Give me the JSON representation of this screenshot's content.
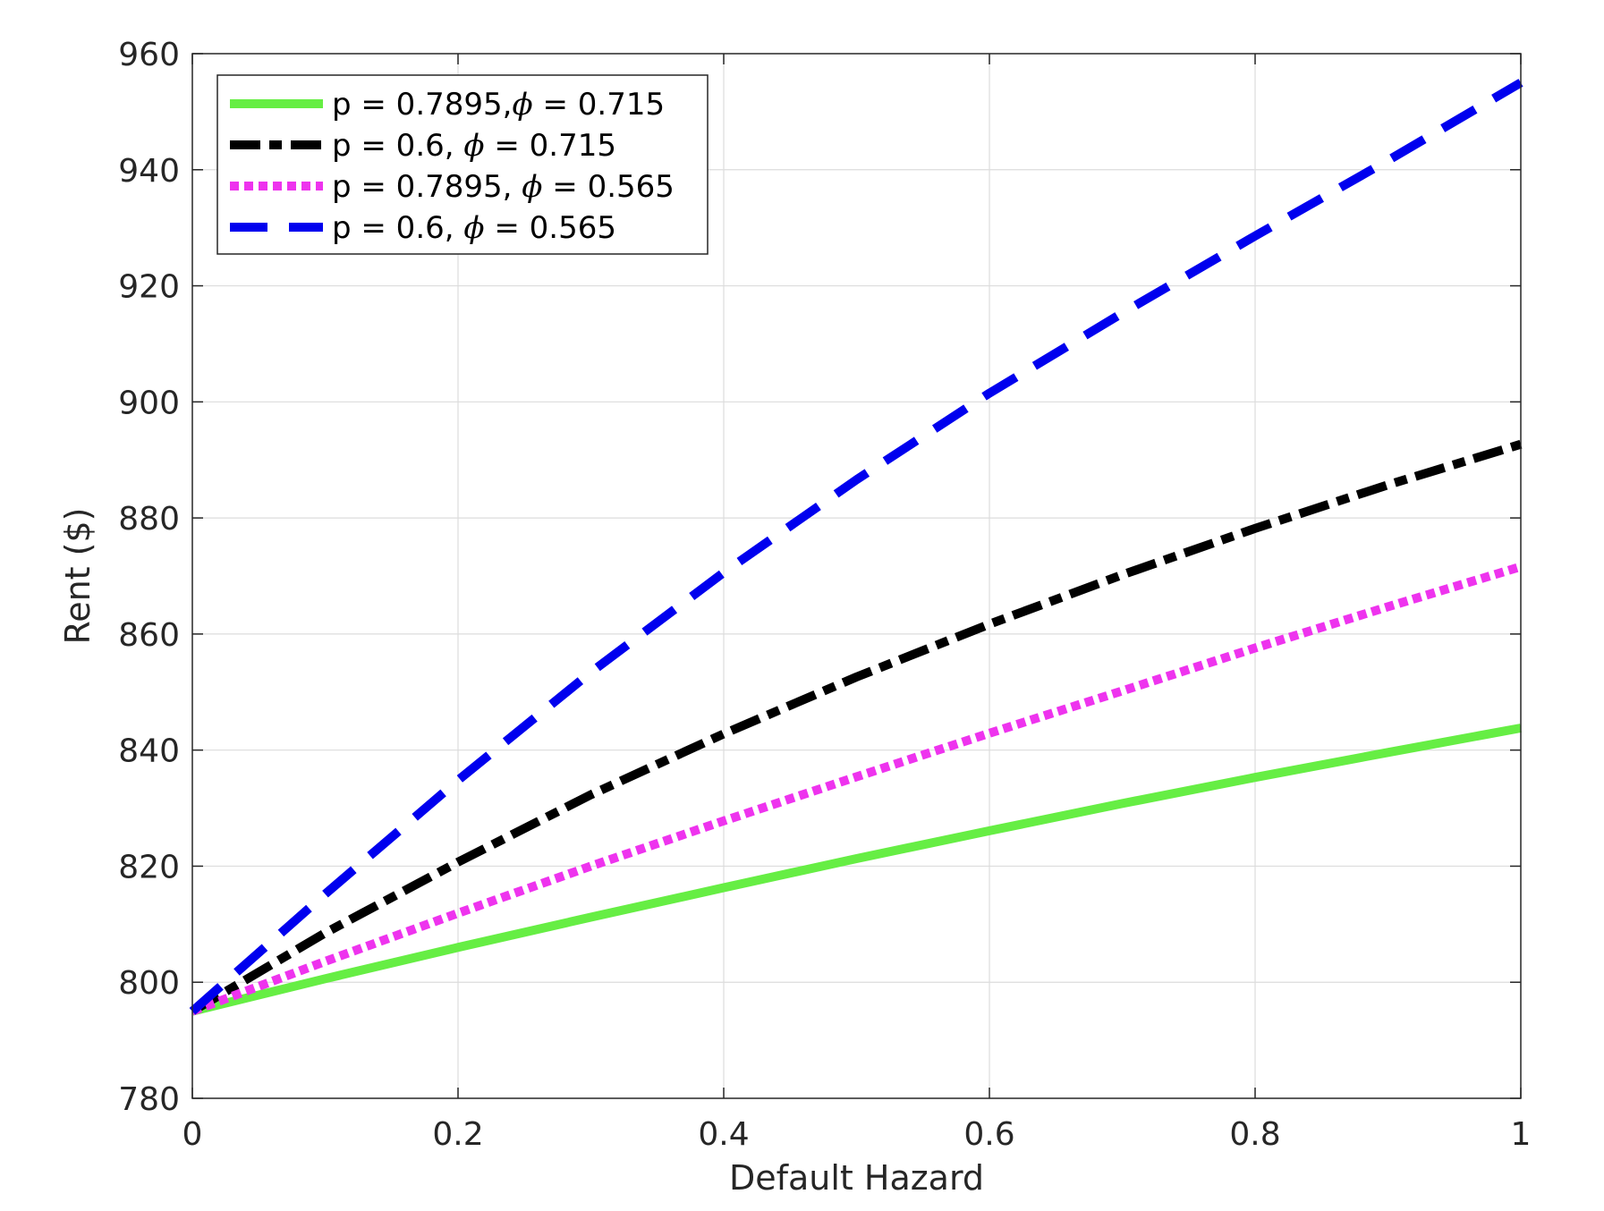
{
  "chart_data": {
    "type": "line",
    "title": "",
    "xlabel": "Default Hazard",
    "ylabel": "Rent ($)",
    "xlim": [
      0,
      1
    ],
    "ylim": [
      780,
      960
    ],
    "xticks": [
      0,
      0.2,
      0.4,
      0.6,
      0.8,
      1
    ],
    "xtick_labels": [
      "0",
      "0.2",
      "0.4",
      "0.6",
      "0.8",
      "1"
    ],
    "yticks": [
      780,
      800,
      820,
      840,
      860,
      880,
      900,
      920,
      940,
      960
    ],
    "ytick_labels": [
      "780",
      "800",
      "820",
      "840",
      "860",
      "880",
      "900",
      "920",
      "940",
      "960"
    ],
    "grid": true,
    "legend_position": "top-left",
    "series": [
      {
        "name": "p = 0.7895,ϕ = 0.715",
        "legend_parts": [
          "p = 0.7895,",
          "ϕ",
          " = 0.715"
        ],
        "color": "#66ee44",
        "style": "solid",
        "x": [
          0,
          0.1,
          0.2,
          0.3,
          0.4,
          0.5,
          0.6,
          0.7,
          0.8,
          0.9,
          1.0
        ],
        "y": [
          795,
          800.6,
          806,
          811.2,
          816.3,
          821.3,
          826.1,
          830.8,
          835.3,
          839.6,
          843.8
        ]
      },
      {
        "name": "p = 0.6, ϕ = 0.715",
        "legend_parts": [
          "p = 0.6, ",
          "ϕ",
          " = 0.715"
        ],
        "color": "#000000",
        "style": "dashdot",
        "x": [
          0,
          0.1,
          0.2,
          0.3,
          0.4,
          0.5,
          0.6,
          0.7,
          0.8,
          0.9,
          1.0
        ],
        "y": [
          795,
          808.5,
          820.7,
          832.3,
          842.8,
          852.6,
          861.7,
          870.2,
          878.2,
          885.7,
          892.7
        ]
      },
      {
        "name": "p = 0.7895, ϕ = 0.565",
        "legend_parts": [
          "p = 0.7895, ",
          "ϕ",
          " = 0.565"
        ],
        "color": "#ee33ee",
        "style": "dotted",
        "x": [
          0,
          0.1,
          0.2,
          0.3,
          0.4,
          0.5,
          0.6,
          0.7,
          0.8,
          0.9,
          1.0
        ],
        "y": [
          795,
          803.6,
          811.9,
          820,
          827.8,
          835.4,
          842.9,
          850.2,
          857.6,
          864.7,
          871.6
        ]
      },
      {
        "name": "p = 0.6, ϕ = 0.565",
        "legend_parts": [
          "p = 0.6, ",
          "ϕ",
          " = 0.565"
        ],
        "color": "#0000ee",
        "style": "dashed",
        "x": [
          0,
          0.1,
          0.2,
          0.3,
          0.4,
          0.5,
          0.6,
          0.7,
          0.8,
          0.9,
          1.0
        ],
        "y": [
          795,
          815.2,
          834.8,
          853.4,
          870.6,
          886.6,
          901.5,
          915.3,
          928.6,
          941.6,
          955
        ]
      }
    ]
  }
}
